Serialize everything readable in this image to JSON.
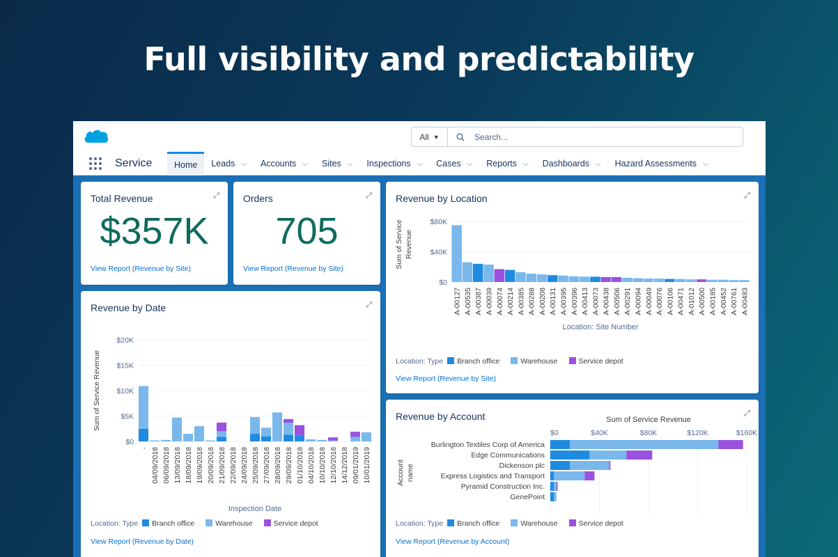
{
  "headline": "Full visibility and predictability",
  "topbar": {
    "search_scope": "All",
    "search_placeholder": "Search..."
  },
  "app_name": "Service",
  "nav": [
    {
      "label": "Home",
      "active": true,
      "chevron": false
    },
    {
      "label": "Leads",
      "active": false,
      "chevron": true
    },
    {
      "label": "Accounts",
      "active": false,
      "chevron": true
    },
    {
      "label": "Sites",
      "active": false,
      "chevron": true
    },
    {
      "label": "Inspections",
      "active": false,
      "chevron": true
    },
    {
      "label": "Cases",
      "active": false,
      "chevron": true
    },
    {
      "label": "Reports",
      "active": false,
      "chevron": true
    },
    {
      "label": "Dashboards",
      "active": false,
      "chevron": true
    },
    {
      "label": "Hazard Assessments",
      "active": false,
      "chevron": true
    }
  ],
  "colors": {
    "branch_office": "#1f8be0",
    "warehouse": "#7ab8ec",
    "service_depot": "#9b51e0",
    "metric": "#0e6b5d",
    "link": "#0070d2"
  },
  "legend": {
    "title": "Location: Type",
    "items": [
      "Branch office",
      "Warehouse",
      "Service depot"
    ]
  },
  "total_revenue": {
    "title": "Total Revenue",
    "value": "$357Κ",
    "link": "View Report (Revenue by Site)"
  },
  "orders": {
    "title": "Orders",
    "value": "705",
    "link": "View Report (Revenue by Site)"
  },
  "revenue_by_date": {
    "title": "Revenue by Date",
    "link": "View Report (Revenue by Date)"
  },
  "revenue_by_location": {
    "title": "Revenue by Location",
    "link": "View Report (Revenue by Site)"
  },
  "revenue_by_account": {
    "title": "Revenue by Account",
    "link": "View Report (Revenue by Account)"
  },
  "chart_data": [
    {
      "id": "date",
      "type": "bar",
      "stacked": true,
      "title": "Revenue by Date",
      "xlabel": "Inspection Date",
      "ylabel": "Sum of Service Revenue",
      "ylim": [
        0,
        20000
      ],
      "yticks": [
        "$0",
        "$5Κ",
        "$10Κ",
        "$15Κ",
        "$20Κ"
      ],
      "categories": [
        "-",
        "04/09/2018",
        "06/09/2018",
        "13/09/2018",
        "18/09/2018",
        "19/09/2018",
        "20/09/2018",
        "21/09/2018",
        "22/09/2018",
        "24/09/2018",
        "25/09/2018",
        "27/09/2018",
        "28/09/2018",
        "29/09/2018",
        "01/10/2018",
        "04/10/2018",
        "10/10/2018",
        "12/10/2018",
        "14/12/2018",
        "09/01/2019",
        "10/01/2019"
      ],
      "series": [
        {
          "name": "Branch office",
          "values": [
            2500,
            0,
            0,
            0,
            0,
            0,
            0,
            900,
            0,
            0,
            1500,
            1000,
            0,
            1300,
            1200,
            0,
            0,
            0,
            0,
            0,
            0
          ]
        },
        {
          "name": "Warehouse",
          "values": [
            8400,
            200,
            300,
            4700,
            1500,
            3000,
            200,
            1100,
            0,
            0,
            3300,
            1700,
            5700,
            2400,
            0,
            400,
            300,
            200,
            0,
            900,
            1800
          ]
        },
        {
          "name": "Service depot",
          "values": [
            0,
            0,
            0,
            0,
            0,
            0,
            0,
            1700,
            0,
            0,
            0,
            0,
            0,
            700,
            2000,
            0,
            0,
            600,
            0,
            1000,
            0
          ]
        }
      ]
    },
    {
      "id": "location",
      "type": "bar",
      "title": "Revenue by Location",
      "xlabel": "Location: Site Number",
      "ylabel": "Sum of Service Revenue",
      "ylim": [
        0,
        80000
      ],
      "yticks": [
        "$0",
        "$40Κ",
        "$80Κ"
      ],
      "categories": [
        "A-00127",
        "A-00535",
        "A-00387",
        "A-00039",
        "A-00074",
        "A-00214",
        "A-00385",
        "A-00288",
        "A-00208",
        "A-00131",
        "A-00395",
        "A-00396",
        "A-00413",
        "A-00073",
        "A-00438",
        "A-00506",
        "A-00291",
        "A-00094",
        "A-00049",
        "A-00076",
        "A-00106",
        "A-00471",
        "A-01012",
        "A-00500",
        "A-00185",
        "A-00452",
        "A-00761",
        "A-00483"
      ],
      "values": [
        75000,
        26000,
        24000,
        23000,
        17000,
        16000,
        13000,
        11000,
        10000,
        9000,
        8500,
        7500,
        7000,
        7000,
        6500,
        6500,
        5500,
        5000,
        4500,
        4500,
        4000,
        4000,
        3500,
        3500,
        3000,
        3000,
        2500,
        2500
      ],
      "types": [
        "Warehouse",
        "Warehouse",
        "Branch office",
        "Warehouse",
        "Service depot",
        "Branch office",
        "Warehouse",
        "Warehouse",
        "Warehouse",
        "Branch office",
        "Warehouse",
        "Warehouse",
        "Warehouse",
        "Branch office",
        "Service depot",
        "Service depot",
        "Warehouse",
        "Warehouse",
        "Warehouse",
        "Warehouse",
        "Branch office",
        "Warehouse",
        "Warehouse",
        "Service depot",
        "Warehouse",
        "Warehouse",
        "Warehouse",
        "Warehouse"
      ]
    },
    {
      "id": "account",
      "type": "bar",
      "orientation": "horizontal",
      "stacked": true,
      "title": "Revenue by Account",
      "xlabel": "Sum of Service Revenue",
      "ylabel": "Account name",
      "xlim": [
        0,
        160000
      ],
      "xticks": [
        "$0",
        "$40Κ",
        "$80Κ",
        "$120Κ",
        "$160Κ"
      ],
      "categories": [
        "Burlington Textiles Corp of America",
        "Edge Communications",
        "Dickenson plc",
        "Express Logistics and Transport",
        "Pyramid Construction Inc.",
        "GenePoint"
      ],
      "series": [
        {
          "name": "Branch office",
          "values": [
            16000,
            32000,
            16000,
            3000,
            3000,
            3000
          ]
        },
        {
          "name": "Warehouse",
          "values": [
            121000,
            30000,
            32000,
            25000,
            2000,
            2000
          ]
        },
        {
          "name": "Service depot",
          "values": [
            20000,
            21000,
            1000,
            8000,
            1000,
            0
          ]
        }
      ]
    }
  ]
}
